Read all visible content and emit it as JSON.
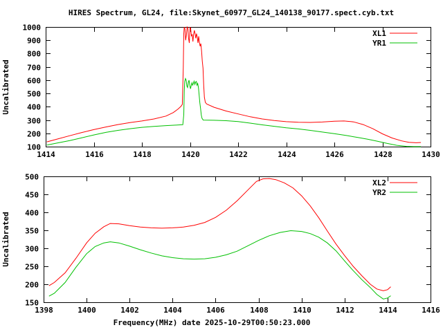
{
  "figure_title": "HIRES Spectrum, GL24, file:Skynet_60977_GL24_140138_90177.spect.cyb.txt",
  "colors": {
    "background": "#ffffff",
    "axis": "#000000",
    "series_red": "#ff0000",
    "series_green": "#00c000"
  },
  "chart_data": [
    {
      "type": "line",
      "title": "",
      "xlabel": "",
      "ylabel": "Uncalibrated",
      "xlim": [
        1414,
        1430
      ],
      "ylim": [
        100,
        1000
      ],
      "xticks": [
        1414,
        1416,
        1418,
        1420,
        1422,
        1424,
        1426,
        1428,
        1430
      ],
      "yticks": [
        100,
        200,
        300,
        400,
        500,
        600,
        700,
        800,
        900,
        1000
      ],
      "grid": false,
      "legend_position": "top-right",
      "series": [
        {
          "name": "XL1",
          "color": "#ff0000",
          "points": [
            [
              1414.05,
              136
            ],
            [
              1414.5,
              158
            ],
            [
              1415,
              182
            ],
            [
              1415.5,
              206
            ],
            [
              1416,
              228
            ],
            [
              1416.5,
              248
            ],
            [
              1417,
              266
            ],
            [
              1417.5,
              281
            ],
            [
              1418,
              293
            ],
            [
              1418.5,
              308
            ],
            [
              1419,
              330
            ],
            [
              1419.3,
              356
            ],
            [
              1419.5,
              382
            ],
            [
              1419.62,
              402
            ],
            [
              1419.68,
              418
            ],
            [
              1419.72,
              700
            ],
            [
              1419.74,
              950
            ],
            [
              1419.76,
              1000
            ],
            [
              1419.79,
              985
            ],
            [
              1419.82,
              900
            ],
            [
              1419.85,
              940
            ],
            [
              1419.88,
              1000
            ],
            [
              1419.91,
              990
            ],
            [
              1419.94,
              915
            ],
            [
              1419.97,
              880
            ],
            [
              1420,
              1000
            ],
            [
              1420.03,
              985
            ],
            [
              1420.06,
              930
            ],
            [
              1420.09,
              945
            ],
            [
              1420.12,
              890
            ],
            [
              1420.15,
              945
            ],
            [
              1420.18,
              975
            ],
            [
              1420.21,
              950
            ],
            [
              1420.24,
              915
            ],
            [
              1420.27,
              950
            ],
            [
              1420.3,
              925
            ],
            [
              1420.33,
              880
            ],
            [
              1420.36,
              930
            ],
            [
              1420.39,
              885
            ],
            [
              1420.42,
              855
            ],
            [
              1420.45,
              875
            ],
            [
              1420.48,
              820
            ],
            [
              1420.51,
              745
            ],
            [
              1420.54,
              690
            ],
            [
              1420.57,
              560
            ],
            [
              1420.6,
              470
            ],
            [
              1420.64,
              432
            ],
            [
              1420.7,
              420
            ],
            [
              1421,
              396
            ],
            [
              1421.5,
              368
            ],
            [
              1422,
              346
            ],
            [
              1422.5,
              325
            ],
            [
              1423,
              308
            ],
            [
              1423.5,
              296
            ],
            [
              1424,
              288
            ],
            [
              1424.5,
              283
            ],
            [
              1425,
              282
            ],
            [
              1425.5,
              285
            ],
            [
              1426,
              291
            ],
            [
              1426.4,
              293
            ],
            [
              1426.8,
              286
            ],
            [
              1427.2,
              266
            ],
            [
              1427.6,
              235
            ],
            [
              1428,
              196
            ],
            [
              1428.4,
              165
            ],
            [
              1428.8,
              143
            ],
            [
              1429.1,
              132
            ],
            [
              1429.4,
              129
            ],
            [
              1429.6,
              131
            ]
          ]
        },
        {
          "name": "YR1",
          "color": "#00c000",
          "points": [
            [
              1414.05,
              112
            ],
            [
              1414.5,
              128
            ],
            [
              1415,
              146
            ],
            [
              1415.5,
              166
            ],
            [
              1416,
              188
            ],
            [
              1416.5,
              207
            ],
            [
              1417,
              222
            ],
            [
              1417.5,
              235
            ],
            [
              1418,
              245
            ],
            [
              1418.5,
              252
            ],
            [
              1419,
              258
            ],
            [
              1419.4,
              262
            ],
            [
              1419.7,
              265
            ],
            [
              1419.74,
              340
            ],
            [
              1419.76,
              520
            ],
            [
              1419.78,
              590
            ],
            [
              1419.81,
              612
            ],
            [
              1419.84,
              600
            ],
            [
              1419.87,
              555
            ],
            [
              1419.9,
              545
            ],
            [
              1419.93,
              585
            ],
            [
              1419.96,
              600
            ],
            [
              1419.99,
              560
            ],
            [
              1420.02,
              535
            ],
            [
              1420.05,
              558
            ],
            [
              1420.08,
              580
            ],
            [
              1420.11,
              562
            ],
            [
              1420.14,
              575
            ],
            [
              1420.17,
              592
            ],
            [
              1420.2,
              568
            ],
            [
              1420.23,
              585
            ],
            [
              1420.26,
              590
            ],
            [
              1420.29,
              562
            ],
            [
              1420.32,
              575
            ],
            [
              1420.35,
              545
            ],
            [
              1420.38,
              488
            ],
            [
              1420.41,
              430
            ],
            [
              1420.44,
              385
            ],
            [
              1420.47,
              338
            ],
            [
              1420.5,
              312
            ],
            [
              1420.55,
              300
            ],
            [
              1421,
              298
            ],
            [
              1421.5,
              295
            ],
            [
              1422,
              289
            ],
            [
              1422.5,
              277
            ],
            [
              1423,
              264
            ],
            [
              1423.5,
              253
            ],
            [
              1424,
              242
            ],
            [
              1424.5,
              233
            ],
            [
              1425,
              222
            ],
            [
              1425.5,
              210
            ],
            [
              1426,
              198
            ],
            [
              1426.5,
              184
            ],
            [
              1427,
              168
            ],
            [
              1427.4,
              155
            ],
            [
              1427.8,
              140
            ],
            [
              1428.2,
              124
            ],
            [
              1428.6,
              110
            ],
            [
              1429,
              102
            ],
            [
              1429.3,
              100
            ],
            [
              1429.6,
              100
            ]
          ]
        }
      ]
    },
    {
      "type": "line",
      "title": "",
      "xlabel": "Frequency(MHz) date 2025-10-29T00:50:23.000",
      "ylabel": "Uncalibrated",
      "xlim": [
        1398,
        1416
      ],
      "ylim": [
        150,
        500
      ],
      "xticks": [
        1398,
        1400,
        1402,
        1404,
        1406,
        1408,
        1410,
        1412,
        1414,
        1416
      ],
      "yticks": [
        150,
        200,
        250,
        300,
        350,
        400,
        450,
        500
      ],
      "grid": false,
      "legend_position": "top-right",
      "series": [
        {
          "name": "XL2",
          "color": "#ff0000",
          "points": [
            [
              1398.25,
              196
            ],
            [
              1398.5,
              205
            ],
            [
              1399,
              232
            ],
            [
              1399.5,
              272
            ],
            [
              1400,
              315
            ],
            [
              1400.4,
              342
            ],
            [
              1400.8,
              360
            ],
            [
              1401.1,
              369
            ],
            [
              1401.5,
              368
            ],
            [
              1402,
              363
            ],
            [
              1402.5,
              359
            ],
            [
              1403,
              357
            ],
            [
              1403.5,
              356
            ],
            [
              1404,
              357
            ],
            [
              1404.5,
              359
            ],
            [
              1405,
              364
            ],
            [
              1405.5,
              372
            ],
            [
              1406,
              386
            ],
            [
              1406.5,
              406
            ],
            [
              1407,
              432
            ],
            [
              1407.5,
              462
            ],
            [
              1407.9,
              486
            ],
            [
              1408.2,
              493
            ],
            [
              1408.5,
              494
            ],
            [
              1408.8,
              491
            ],
            [
              1409.2,
              482
            ],
            [
              1409.6,
              468
            ],
            [
              1410,
              446
            ],
            [
              1410.4,
              418
            ],
            [
              1410.8,
              385
            ],
            [
              1411.2,
              348
            ],
            [
              1411.6,
              312
            ],
            [
              1412,
              280
            ],
            [
              1412.4,
              250
            ],
            [
              1412.8,
              224
            ],
            [
              1413.2,
              200
            ],
            [
              1413.5,
              187
            ],
            [
              1413.8,
              182
            ],
            [
              1414,
              185
            ],
            [
              1414.15,
              193
            ]
          ]
        },
        {
          "name": "YR2",
          "color": "#00c000",
          "points": [
            [
              1398.25,
              167
            ],
            [
              1398.5,
              175
            ],
            [
              1399,
              205
            ],
            [
              1399.5,
              247
            ],
            [
              1400,
              285
            ],
            [
              1400.4,
              305
            ],
            [
              1400.8,
              315
            ],
            [
              1401.1,
              318
            ],
            [
              1401.5,
              315
            ],
            [
              1402,
              306
            ],
            [
              1402.5,
              296
            ],
            [
              1403,
              287
            ],
            [
              1403.5,
              279
            ],
            [
              1404,
              274
            ],
            [
              1404.5,
              271
            ],
            [
              1405,
              270
            ],
            [
              1405.5,
              271
            ],
            [
              1406,
              275
            ],
            [
              1406.5,
              282
            ],
            [
              1407,
              292
            ],
            [
              1407.5,
              307
            ],
            [
              1408,
              322
            ],
            [
              1408.5,
              335
            ],
            [
              1409,
              344
            ],
            [
              1409.5,
              349
            ],
            [
              1410,
              347
            ],
            [
              1410.4,
              341
            ],
            [
              1410.8,
              331
            ],
            [
              1411.2,
              315
            ],
            [
              1411.6,
              293
            ],
            [
              1412,
              265
            ],
            [
              1412.4,
              238
            ],
            [
              1412.8,
              213
            ],
            [
              1413.2,
              191
            ],
            [
              1413.5,
              172
            ],
            [
              1413.8,
              159
            ],
            [
              1414,
              162
            ],
            [
              1414.15,
              168
            ]
          ]
        }
      ]
    }
  ]
}
